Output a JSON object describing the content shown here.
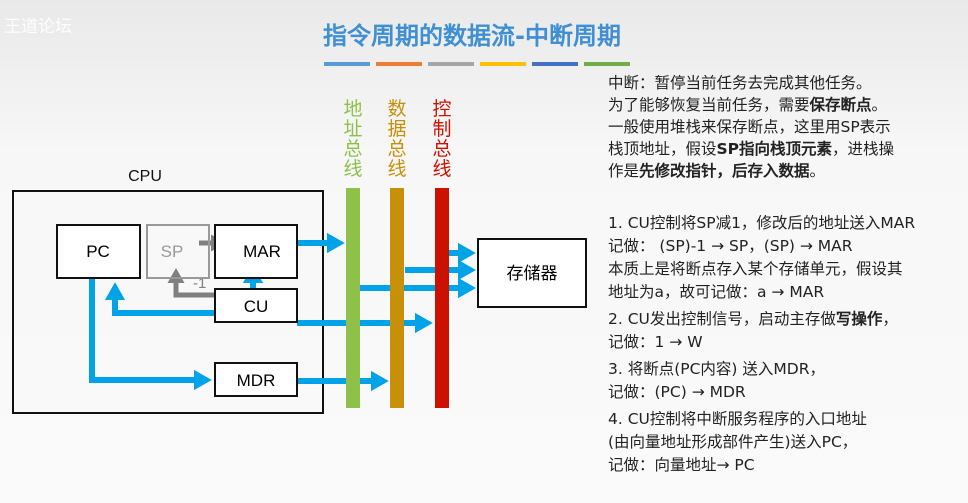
{
  "watermark": "王道论坛",
  "title": "指令周期的数据流-中断周期",
  "accent_bars": [
    "#5b9bd5",
    "#ed7d31",
    "#a5a5a5",
    "#ffc000",
    "#4472c4",
    "#70ad47"
  ],
  "diagram": {
    "cpu": "CPU",
    "pc": "PC",
    "sp": "SP",
    "mar": "MAR",
    "cu": "CU",
    "mdr": "MDR",
    "minus_one": "-1",
    "memory": "存储器",
    "buses": [
      {
        "label": "地址总线",
        "color": "#8fc04a"
      },
      {
        "label": "数据总线",
        "color": "#c8900a"
      },
      {
        "label": "控制总线",
        "color": "#cc1100"
      }
    ],
    "arrow_color": "#00a2e8"
  },
  "notes": {
    "l1": "中断：暂停当前任务去完成其他任务。",
    "l2a": "为了能够恢复当前任务，需要",
    "l2b": "保存断点",
    "l2c": "。",
    "l3": "一般使用堆栈来保存断点，这里用SP表示",
    "l4a": "栈顶地址，假设",
    "l4b": "SP指向栈顶元素",
    "l4c": "，进栈操",
    "l5a": "作是",
    "l5b": "先修改指针，后存入数据",
    "l5c": "。",
    "s1a": "1. CU控制将SP减1，修改后的地址送入MAR",
    "s1b": "记做： (SP)-1 → SP，(SP) → MAR",
    "s1c": "本质上是将断点存入某个存储单元，假设其",
    "s1d": "地址为a，故可记做：a → MAR",
    "s2a": "2. CU发出控制信号，启动主存做",
    "s2b": "写操作",
    "s2c": "，",
    "s2d": "记做：1 → W",
    "s3a": "3. 将断点(PC内容) 送入MDR，",
    "s3b": "记做：(PC) → MDR",
    "s4a": "4. CU控制将中断服务程序的入口地址",
    "s4b": "(由向量地址形成部件产生)送入PC，",
    "s4c": "记做：向量地址→ PC"
  }
}
